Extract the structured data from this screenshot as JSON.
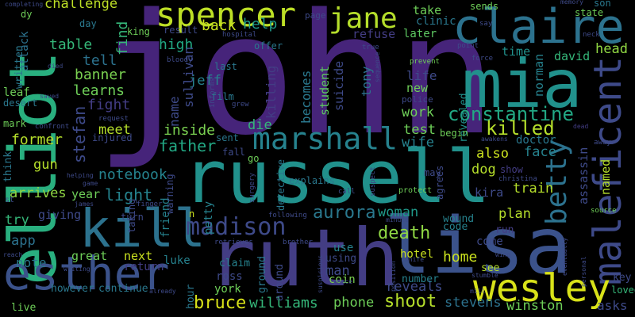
{
  "words": [
    {
      "text": "john",
      "color": "#46247a"
    },
    {
      "text": "russell",
      "color": "#21918c"
    },
    {
      "text": "lisa",
      "color": "#3b528b"
    },
    {
      "text": "ruth",
      "color": "#433d84"
    },
    {
      "text": "claire",
      "color": "#2c728e"
    },
    {
      "text": "mia",
      "color": "#21918c"
    },
    {
      "text": "elliot",
      "color": "#29af7f"
    },
    {
      "text": "esther",
      "color": "#3b528b"
    },
    {
      "text": "kill",
      "color": "#2c728e"
    },
    {
      "text": "maleficent",
      "color": "#3e4a89"
    },
    {
      "text": "spencer",
      "color": "#bddf26"
    },
    {
      "text": "wesley",
      "color": "#d8e219"
    },
    {
      "text": "jane",
      "color": "#b5de2b"
    },
    {
      "text": "betty",
      "color": "#2c728e"
    },
    {
      "text": "marshall",
      "color": "#26828e"
    },
    {
      "text": "madison",
      "color": "#3e4a89"
    },
    {
      "text": "constantine",
      "color": "#22a884"
    },
    {
      "text": "killed",
      "color": "#b5de2b"
    },
    {
      "text": "aurora",
      "color": "#2a788e"
    },
    {
      "text": "death",
      "color": "#8fd744"
    },
    {
      "text": "shoot",
      "color": "#b5de2b"
    },
    {
      "text": "bruce",
      "color": "#d8e219"
    },
    {
      "text": "williams",
      "color": "#35b779"
    },
    {
      "text": "father",
      "color": "#22a884"
    },
    {
      "text": "stefan",
      "color": "#3e4a89"
    },
    {
      "text": "challenge",
      "color": "#bddf26"
    },
    {
      "text": "help",
      "color": "#1f9a8a"
    },
    {
      "text": "back",
      "color": "#cae11f"
    },
    {
      "text": "high",
      "color": "#22a884"
    },
    {
      "text": "tell",
      "color": "#2c728e"
    },
    {
      "text": "fight",
      "color": "#433d84"
    },
    {
      "text": "learns",
      "color": "#6ece58"
    },
    {
      "text": "banner",
      "color": "#7ad151"
    },
    {
      "text": "table",
      "color": "#35b779"
    },
    {
      "text": "find",
      "color": "#35b779"
    },
    {
      "text": "light",
      "color": "#25838e"
    },
    {
      "text": "notebook",
      "color": "#25838e"
    },
    {
      "text": "meet",
      "color": "#b5de2b"
    },
    {
      "text": "former",
      "color": "#b5de2b"
    },
    {
      "text": "arrives",
      "color": "#90d743"
    },
    {
      "text": "gun",
      "color": "#b5de2b"
    },
    {
      "text": "app",
      "color": "#2c728e"
    },
    {
      "text": "note",
      "color": "#2a788e"
    },
    {
      "text": "home",
      "color": "#cae11f"
    },
    {
      "text": "winston",
      "color": "#6ece58"
    },
    {
      "text": "stevens",
      "color": "#2c728e"
    },
    {
      "text": "phone",
      "color": "#6ece58"
    },
    {
      "text": "reveals",
      "color": "#3e4a89"
    },
    {
      "text": "asks",
      "color": "#3e4a89"
    },
    {
      "text": "loved",
      "color": "#35b779"
    },
    {
      "text": "key",
      "color": "#3e4a89"
    },
    {
      "text": "plan",
      "color": "#b5de2b"
    },
    {
      "text": "woman",
      "color": "#1f9a8a"
    },
    {
      "text": "train",
      "color": "#b5de2b"
    },
    {
      "text": "dog",
      "color": "#b5de2b"
    },
    {
      "text": "face",
      "color": "#26828e"
    },
    {
      "text": "also",
      "color": "#cae11f"
    },
    {
      "text": "wife",
      "color": "#26828e"
    },
    {
      "text": "test",
      "color": "#6ece58"
    },
    {
      "text": "work",
      "color": "#6ece58"
    },
    {
      "text": "die",
      "color": "#35b779"
    },
    {
      "text": "inside",
      "color": "#7ad151"
    },
    {
      "text": "name",
      "color": "#3e4a89"
    },
    {
      "text": "jeff",
      "color": "#26828e"
    },
    {
      "text": "sullivan",
      "color": "#3e4a89"
    },
    {
      "text": "killing",
      "color": "#433d84"
    },
    {
      "text": "student",
      "color": "#5ec962"
    },
    {
      "text": "becomes",
      "color": "#2a788e"
    },
    {
      "text": "suicide",
      "color": "#3e4a89"
    },
    {
      "text": "tony",
      "color": "#2c728e"
    },
    {
      "text": "life",
      "color": "#3e4a89"
    },
    {
      "text": "new",
      "color": "#6ece58"
    },
    {
      "text": "refuse",
      "color": "#433d84"
    },
    {
      "text": "later",
      "color": "#5ec962"
    },
    {
      "text": "take",
      "color": "#6ece58"
    },
    {
      "text": "clinic",
      "color": "#2a788e"
    },
    {
      "text": "time",
      "color": "#21918c"
    },
    {
      "text": "david",
      "color": "#35b779"
    },
    {
      "text": "head",
      "color": "#90d743"
    },
    {
      "text": "norman",
      "color": "#26828e"
    },
    {
      "text": "named",
      "color": "#b5de2b"
    },
    {
      "text": "assassin",
      "color": "#3e4a89"
    },
    {
      "text": "kira",
      "color": "#3e4a89"
    },
    {
      "text": "doctor",
      "color": "#2a788e"
    },
    {
      "text": "revealed",
      "color": "#21918c"
    },
    {
      "text": "begin",
      "color": "#6ece58"
    },
    {
      "text": "attack",
      "color": "#2c728e"
    },
    {
      "text": "written",
      "color": "#2a788e"
    },
    {
      "text": "leaf",
      "color": "#6ece58"
    },
    {
      "text": "desert",
      "color": "#2a788e"
    },
    {
      "text": "mark",
      "color": "#6ece58"
    },
    {
      "text": "think",
      "color": "#2a788e"
    },
    {
      "text": "try",
      "color": "#35b779"
    },
    {
      "text": "giving",
      "color": "#3e4a89"
    },
    {
      "text": "year",
      "color": "#6ece58"
    },
    {
      "text": "next",
      "color": "#cae11f"
    },
    {
      "text": "great",
      "color": "#6ece58"
    },
    {
      "text": "luke",
      "color": "#26828e"
    },
    {
      "text": "return",
      "color": "#433d84"
    },
    {
      "text": "ross",
      "color": "#3e4a89"
    },
    {
      "text": "york",
      "color": "#6ece58"
    },
    {
      "text": "hour",
      "color": "#2a788e"
    },
    {
      "text": "friend",
      "color": "#26828e"
    },
    {
      "text": "petty",
      "color": "#26828e"
    },
    {
      "text": "claim",
      "color": "#26828e"
    },
    {
      "text": "ground",
      "color": "#2a788e"
    },
    {
      "text": "around",
      "color": "#3e4a89"
    },
    {
      "text": "man",
      "color": "#3e4a89"
    },
    {
      "text": "use",
      "color": "#26828e"
    },
    {
      "text": "using",
      "color": "#3e4a89"
    },
    {
      "text": "coin",
      "color": "#7ad151"
    },
    {
      "text": "hotel",
      "color": "#cae11f"
    },
    {
      "text": "number",
      "color": "#26828e"
    },
    {
      "text": "see",
      "color": "#b5de2b"
    },
    {
      "text": "come",
      "color": "#3e4a89"
    },
    {
      "text": "code",
      "color": "#26828e"
    },
    {
      "text": "wound",
      "color": "#26828e"
    },
    {
      "text": "run",
      "color": "#433d84"
    },
    {
      "text": "however",
      "color": "#2a788e"
    },
    {
      "text": "continue",
      "color": "#2a788e"
    },
    {
      "text": "live",
      "color": "#6ece58"
    },
    {
      "text": "day",
      "color": "#2a788e"
    },
    {
      "text": "dy",
      "color": "#6ece58"
    },
    {
      "text": "king",
      "color": "#6ece58"
    },
    {
      "text": "result",
      "color": "#3e4a89"
    },
    {
      "text": "offer",
      "color": "#2a788e"
    },
    {
      "text": "last",
      "color": "#2a788e"
    },
    {
      "text": "film",
      "color": "#2a788e"
    },
    {
      "text": "sent",
      "color": "#2a788e"
    },
    {
      "text": "fall",
      "color": "#3e4a89"
    },
    {
      "text": "go",
      "color": "#6ece58"
    },
    {
      "text": "may",
      "color": "#3e4a89"
    },
    {
      "text": "sends",
      "color": "#6ece58"
    },
    {
      "text": "state",
      "color": "#6ece58"
    },
    {
      "text": "son",
      "color": "#2a788e"
    },
    {
      "text": "page",
      "color": "#3e4a89"
    },
    {
      "text": "say",
      "color": "#3e4a89"
    },
    {
      "text": "memory",
      "color": "#3e4a89"
    },
    {
      "text": "true",
      "color": "#3e4a89"
    },
    {
      "text": "point",
      "color": "#3e4a89"
    },
    {
      "text": "neck",
      "color": "#3e4a89"
    },
    {
      "text": "force",
      "color": "#3e4a89"
    },
    {
      "text": "prevent",
      "color": "#6ece58"
    },
    {
      "text": "hospital",
      "color": "#3e4a89"
    },
    {
      "text": "bloody",
      "color": "#3e4a89"
    },
    {
      "text": "informs",
      "color": "#3e4a89"
    },
    {
      "text": "grew",
      "color": "#3e4a89"
    },
    {
      "text": "police",
      "color": "#3e4a89"
    },
    {
      "text": "injured",
      "color": "#3e4a89"
    },
    {
      "text": "request",
      "color": "#3e4a89"
    },
    {
      "text": "confront",
      "color": "#3e4a89"
    },
    {
      "text": "saved",
      "color": "#3e4a89"
    },
    {
      "text": "died",
      "color": "#3e4a89"
    },
    {
      "text": "sequence",
      "color": "#3e4a89"
    },
    {
      "text": "awakens",
      "color": "#3e4a89"
    },
    {
      "text": "dead",
      "color": "#433d84"
    },
    {
      "text": "away",
      "color": "#3e4a89"
    },
    {
      "text": "show",
      "color": "#433d84"
    },
    {
      "text": "christina",
      "color": "#3e4a89"
    },
    {
      "text": "explains",
      "color": "#2a788e"
    },
    {
      "text": "detective",
      "color": "#2a788e"
    },
    {
      "text": "surgery",
      "color": "#3e4a89"
    },
    {
      "text": "agrees",
      "color": "#3e4a89"
    },
    {
      "text": "call",
      "color": "#3e4a89"
    },
    {
      "text": "suspect",
      "color": "#3e4a89"
    },
    {
      "text": "protect",
      "color": "#6ece58"
    },
    {
      "text": "warning",
      "color": "#3e4a89"
    },
    {
      "text": "finger",
      "color": "#3e4a89"
    },
    {
      "text": "james",
      "color": "#3e4a89"
    },
    {
      "text": "game",
      "color": "#3e4a89"
    },
    {
      "text": "helping",
      "color": "#3e4a89"
    },
    {
      "text": "following",
      "color": "#3e4a89"
    },
    {
      "text": "brother",
      "color": "#3e4a89"
    },
    {
      "text": "retrieves",
      "color": "#3e4a89"
    },
    {
      "text": "minute",
      "color": "#3e4a89"
    },
    {
      "text": "knife",
      "color": "#3e4a89"
    },
    {
      "text": "wing",
      "color": "#3e4a89"
    },
    {
      "text": "stumble",
      "color": "#3e4a89"
    },
    {
      "text": "mill",
      "color": "#3e4a89"
    },
    {
      "text": "position",
      "color": "#3e4a89"
    },
    {
      "text": "peace",
      "color": "#3e4a89"
    },
    {
      "text": "suspicious",
      "color": "#3e4a89"
    },
    {
      "text": "already",
      "color": "#3e4a89"
    },
    {
      "text": "writing",
      "color": "#3e4a89"
    },
    {
      "text": "reach",
      "color": "#3e4a89"
    },
    {
      "text": "completing",
      "color": "#3e4a89"
    },
    {
      "text": "personal",
      "color": "#3e4a89"
    },
    {
      "text": "source",
      "color": "#6ece58"
    },
    {
      "text": "eventually",
      "color": "#3e4a89"
    },
    {
      "text": "turn",
      "color": "#3e4a89"
    },
    {
      "text": "taking",
      "color": "#3e4a89"
    },
    {
      "text": "st",
      "color": "#3e4a89"
    },
    {
      "text": "n",
      "color": "#cae11f"
    }
  ]
}
